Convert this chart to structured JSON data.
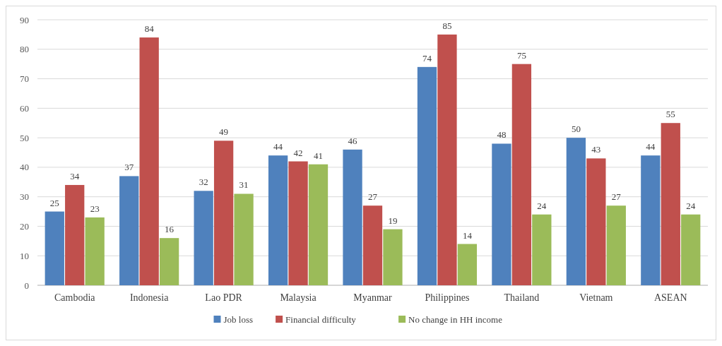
{
  "chart_data": {
    "type": "bar",
    "categories": [
      "Cambodia",
      "Indonesia",
      "Lao PDR",
      "Malaysia",
      "Myanmar",
      "Philippines",
      "Thailand",
      "Vietnam",
      "ASEAN"
    ],
    "series": [
      {
        "name": "Job loss",
        "color": "#4f81bd",
        "values": [
          25,
          37,
          32,
          44,
          46,
          74,
          48,
          50,
          44
        ]
      },
      {
        "name": "Financial difficulty",
        "color": "#c0504d",
        "values": [
          34,
          84,
          49,
          42,
          27,
          85,
          75,
          43,
          55
        ]
      },
      {
        "name": "No change in HH income",
        "color": "#9bbb59",
        "values": [
          23,
          16,
          31,
          41,
          19,
          14,
          24,
          27,
          24
        ]
      }
    ],
    "ylim": [
      0,
      90
    ],
    "yticks": [
      0,
      10,
      20,
      30,
      40,
      50,
      60,
      70,
      80,
      90
    ],
    "grid": "y",
    "legend": "bottom",
    "data_labels": true
  }
}
